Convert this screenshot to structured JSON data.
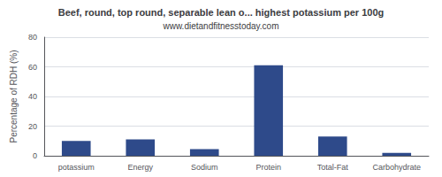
{
  "chart_data": {
    "type": "bar",
    "title": "Beef, round, top round, separable lean o... highest potassium per 100g",
    "subtitle": "www.dietandfitnesstoday.com",
    "ylabel": "Percentage of RDH (%)",
    "categories": [
      "potassium",
      "Energy",
      "Sodium",
      "Protein",
      "Total-Fat",
      "Carbohydrate"
    ],
    "values": [
      10,
      11,
      4.5,
      61,
      13,
      2
    ],
    "color": "#2e4a8a",
    "ylim": [
      0,
      80
    ],
    "yticks": [
      0,
      20,
      40,
      60,
      80
    ],
    "grid": true
  }
}
